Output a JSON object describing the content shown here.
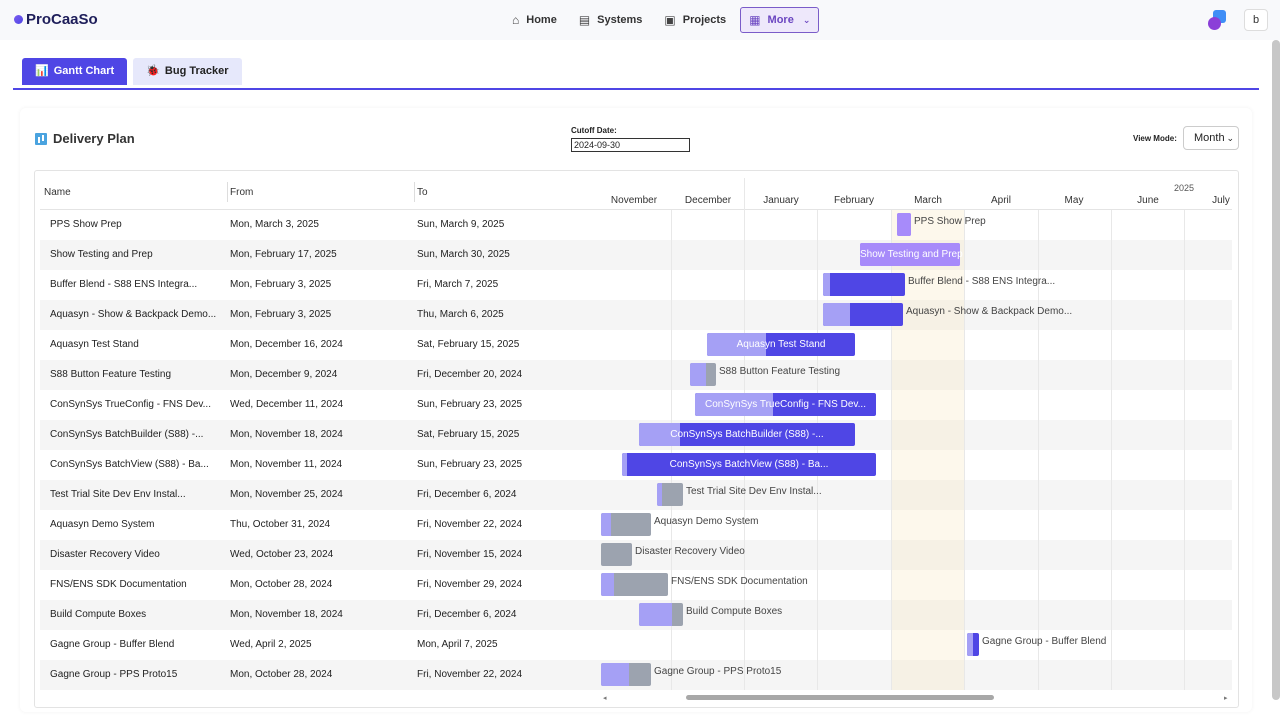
{
  "app": {
    "name": "ProCaaSo"
  },
  "nav": {
    "items": [
      {
        "label": "Home",
        "icon": "home-icon",
        "glyph": "⌂"
      },
      {
        "label": "Systems",
        "icon": "systems-icon",
        "glyph": "▤"
      },
      {
        "label": "Projects",
        "icon": "projects-icon",
        "glyph": "▣"
      }
    ],
    "more": {
      "label": "More",
      "icon": "grid-icon",
      "glyph": "▦"
    },
    "user_initial": "b"
  },
  "tabs": [
    {
      "label": "Gantt Chart",
      "icon": "chart-icon",
      "glyph": "📊",
      "active": true
    },
    {
      "label": "Bug Tracker",
      "icon": "bug-icon",
      "glyph": "🐞",
      "active": false
    }
  ],
  "panel": {
    "title": "Delivery Plan",
    "cutoff_label": "Cutoff Date:",
    "cutoff_value": "2024-09-30",
    "view_mode_label": "View Mode:",
    "view_mode_value": "Month"
  },
  "table": {
    "columns": [
      "Name",
      "From",
      "To"
    ]
  },
  "timeline": {
    "year_label": "2025",
    "months": [
      "November",
      "December",
      "January",
      "February",
      "March",
      "April",
      "May",
      "June",
      "July"
    ]
  },
  "tasks": [
    {
      "name": "PPS Show Prep",
      "from": "Mon, March 3, 2025",
      "to": "Sun, March 9, 2025",
      "bar_label": "PPS Show Prep",
      "progress": 1.0,
      "style": "light"
    },
    {
      "name": "Show Testing and Prep",
      "from": "Mon, February 17, 2025",
      "to": "Sun, March 30, 2025",
      "bar_label": "Show Testing and Prep",
      "progress": 1.0,
      "style": "light"
    },
    {
      "name": "Buffer Blend - S88 ENS Integra...",
      "from": "Mon, February 3, 2025",
      "to": "Fri, March 7, 2025",
      "bar_label": "Buffer Blend - S88 ENS Integra...",
      "progress": 0.08,
      "style": "dark"
    },
    {
      "name": "Aquasyn - Show & Backpack Demo...",
      "from": "Mon, February 3, 2025",
      "to": "Thu, March 6, 2025",
      "bar_label": "Aquasyn - Show & Backpack Demo...",
      "progress": 0.34,
      "style": "dark"
    },
    {
      "name": "Aquasyn Test Stand",
      "from": "Mon, December 16, 2024",
      "to": "Sat, February 15, 2025",
      "bar_label": "Aquasyn Test Stand",
      "progress": 0.4,
      "style": "dark"
    },
    {
      "name": "S88 Button Feature Testing",
      "from": "Mon, December 9, 2024",
      "to": "Fri, December 20, 2024",
      "bar_label": "S88 Button Feature Testing",
      "progress": 0.6,
      "style": "grey"
    },
    {
      "name": "ConSynSys TrueConfig - FNS Dev...",
      "from": "Wed, December 11, 2024",
      "to": "Sun, February 23, 2025",
      "bar_label": "ConSynSys TrueConfig - FNS Dev...",
      "progress": 0.43,
      "style": "dark"
    },
    {
      "name": "ConSynSys BatchBuilder (S88) -...",
      "from": "Mon, November 18, 2024",
      "to": "Sat, February 15, 2025",
      "bar_label": "ConSynSys BatchBuilder (S88) -...",
      "progress": 0.19,
      "style": "dark"
    },
    {
      "name": "ConSynSys BatchView (S88) - Ba...",
      "from": "Mon, November 11, 2024",
      "to": "Sun, February 23, 2025",
      "bar_label": "ConSynSys BatchView (S88) - Ba...",
      "progress": 0.02,
      "style": "dark"
    },
    {
      "name": "Test Trial Site Dev Env Instal...",
      "from": "Mon, November 25, 2024",
      "to": "Fri, December 6, 2024",
      "bar_label": "Test Trial Site Dev Env Instal...",
      "progress": 0.2,
      "style": "grey"
    },
    {
      "name": "Aquasyn Demo System",
      "from": "Thu, October 31, 2024",
      "to": "Fri, November 22, 2024",
      "bar_label": "Aquasyn Demo System",
      "progress": 0.2,
      "style": "grey"
    },
    {
      "name": "Disaster Recovery Video",
      "from": "Wed, October 23, 2024",
      "to": "Fri, November 15, 2024",
      "bar_label": "Disaster Recovery Video",
      "progress": 0.0,
      "style": "grey"
    },
    {
      "name": "FNS/ENS SDK Documentation",
      "from": "Mon, October 28, 2024",
      "to": "Fri, November 29, 2024",
      "bar_label": "FNS/ENS SDK Documentation",
      "progress": 0.2,
      "style": "grey"
    },
    {
      "name": "Build Compute Boxes",
      "from": "Mon, November 18, 2024",
      "to": "Fri, December 6, 2024",
      "bar_label": "Build Compute Boxes",
      "progress": 0.75,
      "style": "grey"
    },
    {
      "name": "Gagne Group - Buffer Blend",
      "from": "Wed, April 2, 2025",
      "to": "Mon, April 7, 2025",
      "bar_label": "Gagne Group - Buffer Blend",
      "progress": 0.5,
      "style": "dark"
    },
    {
      "name": "Gagne Group - PPS Proto15",
      "from": "Mon, October 28, 2024",
      "to": "Fri, November 22, 2024",
      "bar_label": "Gagne Group - PPS Proto15",
      "progress": 0.55,
      "style": "grey"
    }
  ],
  "colors": {
    "accent": "#4f46e5",
    "bar_progress": "#a5a0f5",
    "bar_dark": "#4f46e5",
    "bar_light": "#a78bfa",
    "bar_grey": "#9ca3af"
  }
}
